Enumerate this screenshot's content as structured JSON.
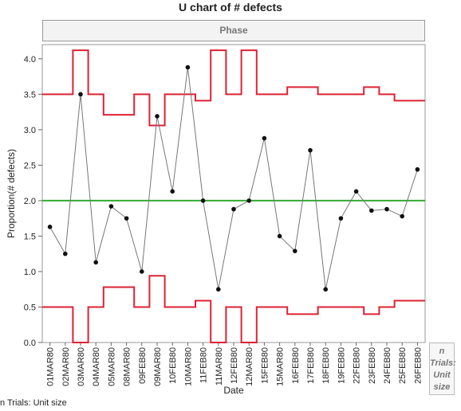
{
  "chart_data": {
    "type": "line",
    "title": "U chart of # defects",
    "phase_label": "Phase",
    "xlabel": "Date",
    "ylabel": "Proportion(# defects)",
    "side_label": [
      "n",
      "Trials:",
      "Unit",
      "size"
    ],
    "footnote": "n Trials: Unit size",
    "categories": [
      "01MAR80",
      "02MAR80",
      "03MAR80",
      "04MAR80",
      "05MAR80",
      "08MAR80",
      "09FEB80",
      "09MAR80",
      "10FEB80",
      "10MAR80",
      "11FEB80",
      "11MAR80",
      "12FEB80",
      "12MAR80",
      "15FEB80",
      "15MAR80",
      "16FEB80",
      "17FEB80",
      "18FEB80",
      "19FEB80",
      "22FEB80",
      "23FEB80",
      "24FEB80",
      "25FEB80",
      "26FEB80"
    ],
    "ylim": [
      0,
      4.2
    ],
    "yticks": [
      0.0,
      0.5,
      1.0,
      1.5,
      2.0,
      2.5,
      3.0,
      3.5,
      4.0
    ],
    "ytick_labels": [
      "0.0",
      "0.5",
      "1.0",
      "1.5",
      "2.0",
      "2.5",
      "3.0",
      "3.5",
      "4.0"
    ],
    "series": [
      {
        "name": "",
        "role": "points",
        "color": "#777777",
        "values": [
          1.63,
          1.25,
          3.5,
          1.13,
          1.92,
          1.75,
          1.0,
          3.19,
          2.13,
          3.88,
          2.0,
          0.75,
          1.88,
          2.0,
          2.88,
          1.5,
          1.29,
          2.71,
          0.75,
          1.75,
          2.13,
          1.86,
          1.88,
          1.78,
          2.44
        ]
      },
      {
        "name": "",
        "role": "upper_limit",
        "color": "#dd2233",
        "values": [
          3.5,
          3.5,
          4.12,
          3.5,
          3.21,
          3.21,
          3.5,
          3.06,
          3.5,
          3.5,
          3.41,
          4.12,
          3.5,
          4.12,
          3.5,
          3.5,
          3.6,
          3.6,
          3.5,
          3.5,
          3.5,
          3.6,
          3.5,
          3.41,
          3.41
        ]
      },
      {
        "name": "",
        "role": "lower_limit",
        "color": "#dd2233",
        "values": [
          0.5,
          0.5,
          0.0,
          0.5,
          0.78,
          0.78,
          0.5,
          0.94,
          0.5,
          0.5,
          0.59,
          0.0,
          0.5,
          0.0,
          0.5,
          0.5,
          0.4,
          0.4,
          0.5,
          0.5,
          0.5,
          0.4,
          0.5,
          0.59,
          0.59
        ]
      },
      {
        "name": "",
        "role": "center_line",
        "color": "#33aa33",
        "value": 2.0
      }
    ],
    "grid": false,
    "legend": "none"
  }
}
